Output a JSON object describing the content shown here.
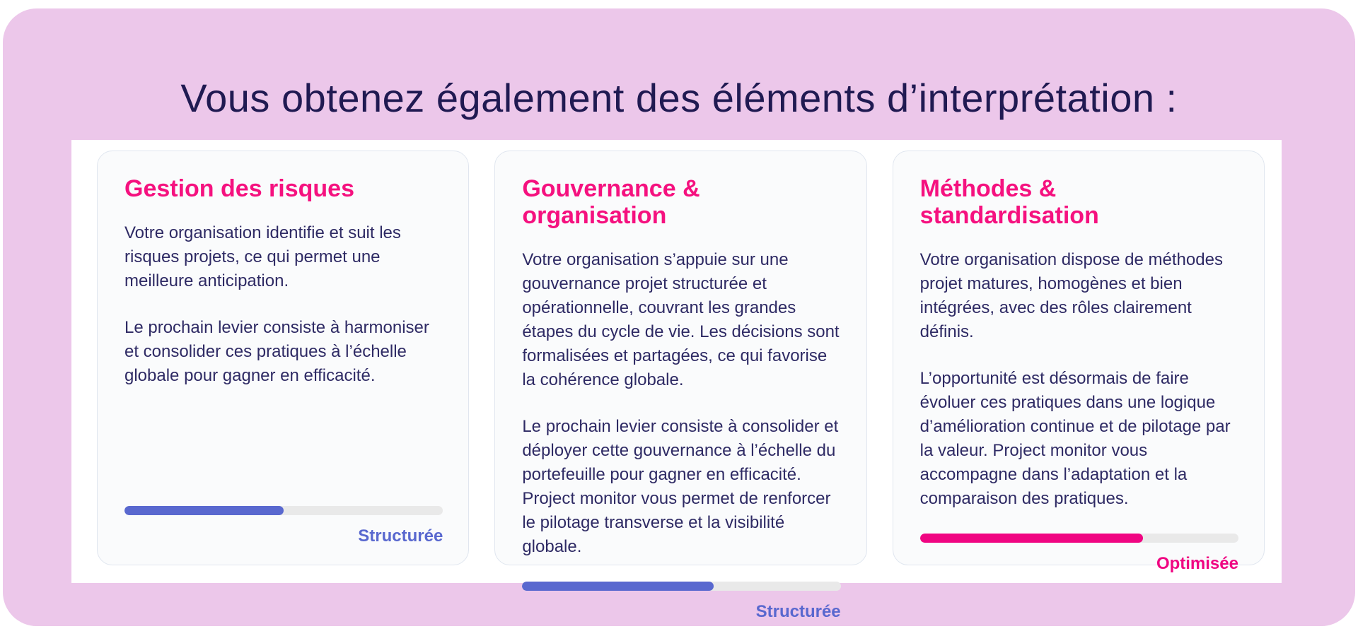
{
  "title": "Vous obtenez également des éléments d’interprétation :",
  "palette": {
    "background_pink": "#ecc7ea",
    "title_navy": "#201a52",
    "heading_pink": "#f5117f",
    "body_navy": "#2e2a64",
    "bar_blue": "#5968cf",
    "bar_pink": "#f00582",
    "bar_track": "#e9e9e9",
    "card_border": "#e0e6ef"
  },
  "cards": [
    {
      "heading": "Gestion des risques",
      "paragraphs": [
        "Votre organisation identifie et suit les risques projets, ce qui permet une meilleure anticipation.",
        "Le prochain levier consiste à harmoniser et consolider ces pratiques à l’échelle globale pour gagner en efficacité."
      ],
      "progress_percent": 50,
      "level_label": "Structurée",
      "accent": "blue"
    },
    {
      "heading": "Gouvernance & organisation",
      "paragraphs": [
        "Votre organisation s’appuie sur une gouvernance projet structurée et opérationnelle, couvrant les grandes étapes du cycle de vie. Les décisions sont formalisées et partagées, ce qui favorise la cohérence globale.",
        "Le prochain levier consiste à consolider et déployer cette gouvernance à l’échelle du portefeuille pour gagner en efficacité. Project monitor vous permet de renforcer le pilotage transverse et la visibilité globale."
      ],
      "progress_percent": 60,
      "level_label": "Structurée",
      "accent": "blue"
    },
    {
      "heading": "Méthodes & standardisation",
      "paragraphs": [
        "Votre organisation dispose de méthodes projet matures, homogènes et bien intégrées, avec des rôles clairement définis.",
        "L’opportunité est désormais de faire évoluer ces pratiques dans une logique d’amélioration continue et de pilotage par la valeur. Project monitor vous accompagne dans l’adaptation et la comparaison des pratiques."
      ],
      "progress_percent": 70,
      "level_label": "Optimisée",
      "accent": "pink"
    }
  ]
}
